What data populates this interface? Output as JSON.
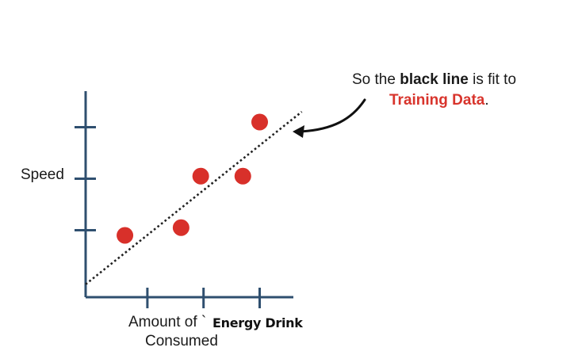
{
  "labels": {
    "y_axis": "Speed",
    "x_axis_line1": "Amount of `",
    "x_axis_line2": "Consumed",
    "x_axis_overlay": "Energy Drink"
  },
  "annotation": {
    "prefix": "So the ",
    "emphasis": "black line",
    "suffix": " is fit to",
    "highlight": "Training Data",
    "end": "."
  },
  "chart_data": {
    "type": "scatter",
    "points": [
      {
        "x": 0.6,
        "y": 0.9
      },
      {
        "x": 1.6,
        "y": 1.05
      },
      {
        "x": 1.95,
        "y": 2.05
      },
      {
        "x": 2.7,
        "y": 2.05
      },
      {
        "x": 3.0,
        "y": 3.1
      }
    ],
    "fit_line": {
      "x": [
        -0.1,
        3.75
      ],
      "y": [
        -0.05,
        3.3
      ]
    },
    "xlim": [
      -0.1,
      3.6
    ],
    "ylim": [
      -0.3,
      3.7
    ],
    "x_ticks": [
      1,
      2,
      3
    ],
    "y_ticks": [
      1,
      2,
      3
    ],
    "colors": {
      "points": "#d8302a",
      "axis": "#2f4f6f",
      "fit_line": "#222222",
      "arrow": "#111111",
      "highlight": "#d8342c"
    }
  }
}
